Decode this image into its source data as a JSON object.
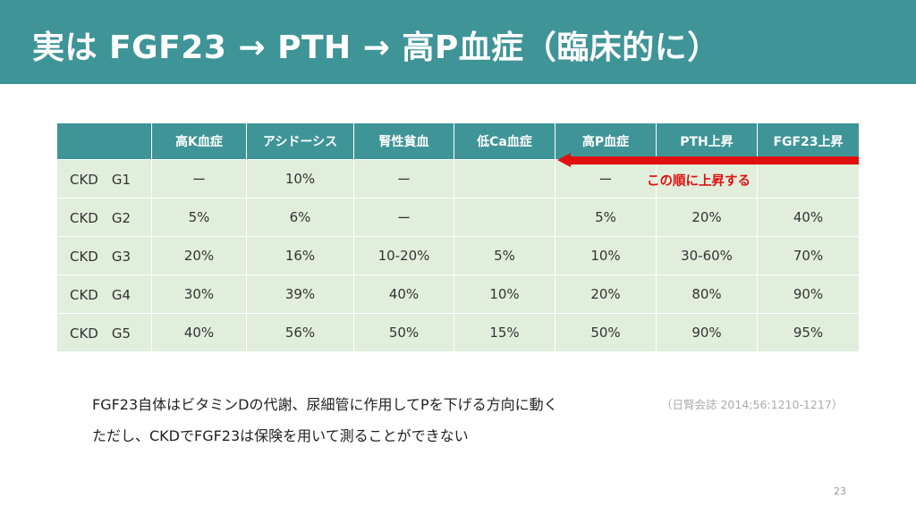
{
  "slide": {
    "title": "実は FGF23 → PTH → 高P血症（臨床的に）",
    "page_number": "23"
  },
  "table": {
    "headers": [
      "",
      "高K血症",
      "アシドーシス",
      "腎性貧血",
      "低Ca血症",
      "高P血症",
      "PTH上昇",
      "FGF23上昇"
    ],
    "rows": [
      [
        "CKD　G1",
        "ー",
        "10%",
        "ー",
        "",
        "ー",
        "",
        ""
      ],
      [
        "CKD　G2",
        "5%",
        "6%",
        "ー",
        "",
        "5%",
        "20%",
        "40%"
      ],
      [
        "CKD　G3",
        "20%",
        "16%",
        "10-20%",
        "5%",
        "10%",
        "30-60%",
        "70%"
      ],
      [
        "CKD　G4",
        "30%",
        "39%",
        "40%",
        "10%",
        "20%",
        "80%",
        "90%"
      ],
      [
        "CKD　G5",
        "40%",
        "56%",
        "50%",
        "15%",
        "50%",
        "90%",
        "95%"
      ]
    ]
  },
  "annotation": {
    "arrow_label": "この順に上昇する",
    "arrow_color": "#e01010"
  },
  "notes": {
    "line1": "FGF23自体はビタミンDの代謝、尿細管に作用してPを下げる方向に動く",
    "citation": "（日腎会誌 2014;56:1210-1217）",
    "line2": "ただし、CKDでFGF23は保険を用いて測ることができない"
  },
  "colors": {
    "header": "#3f9497",
    "cell": "#e2eedc"
  }
}
